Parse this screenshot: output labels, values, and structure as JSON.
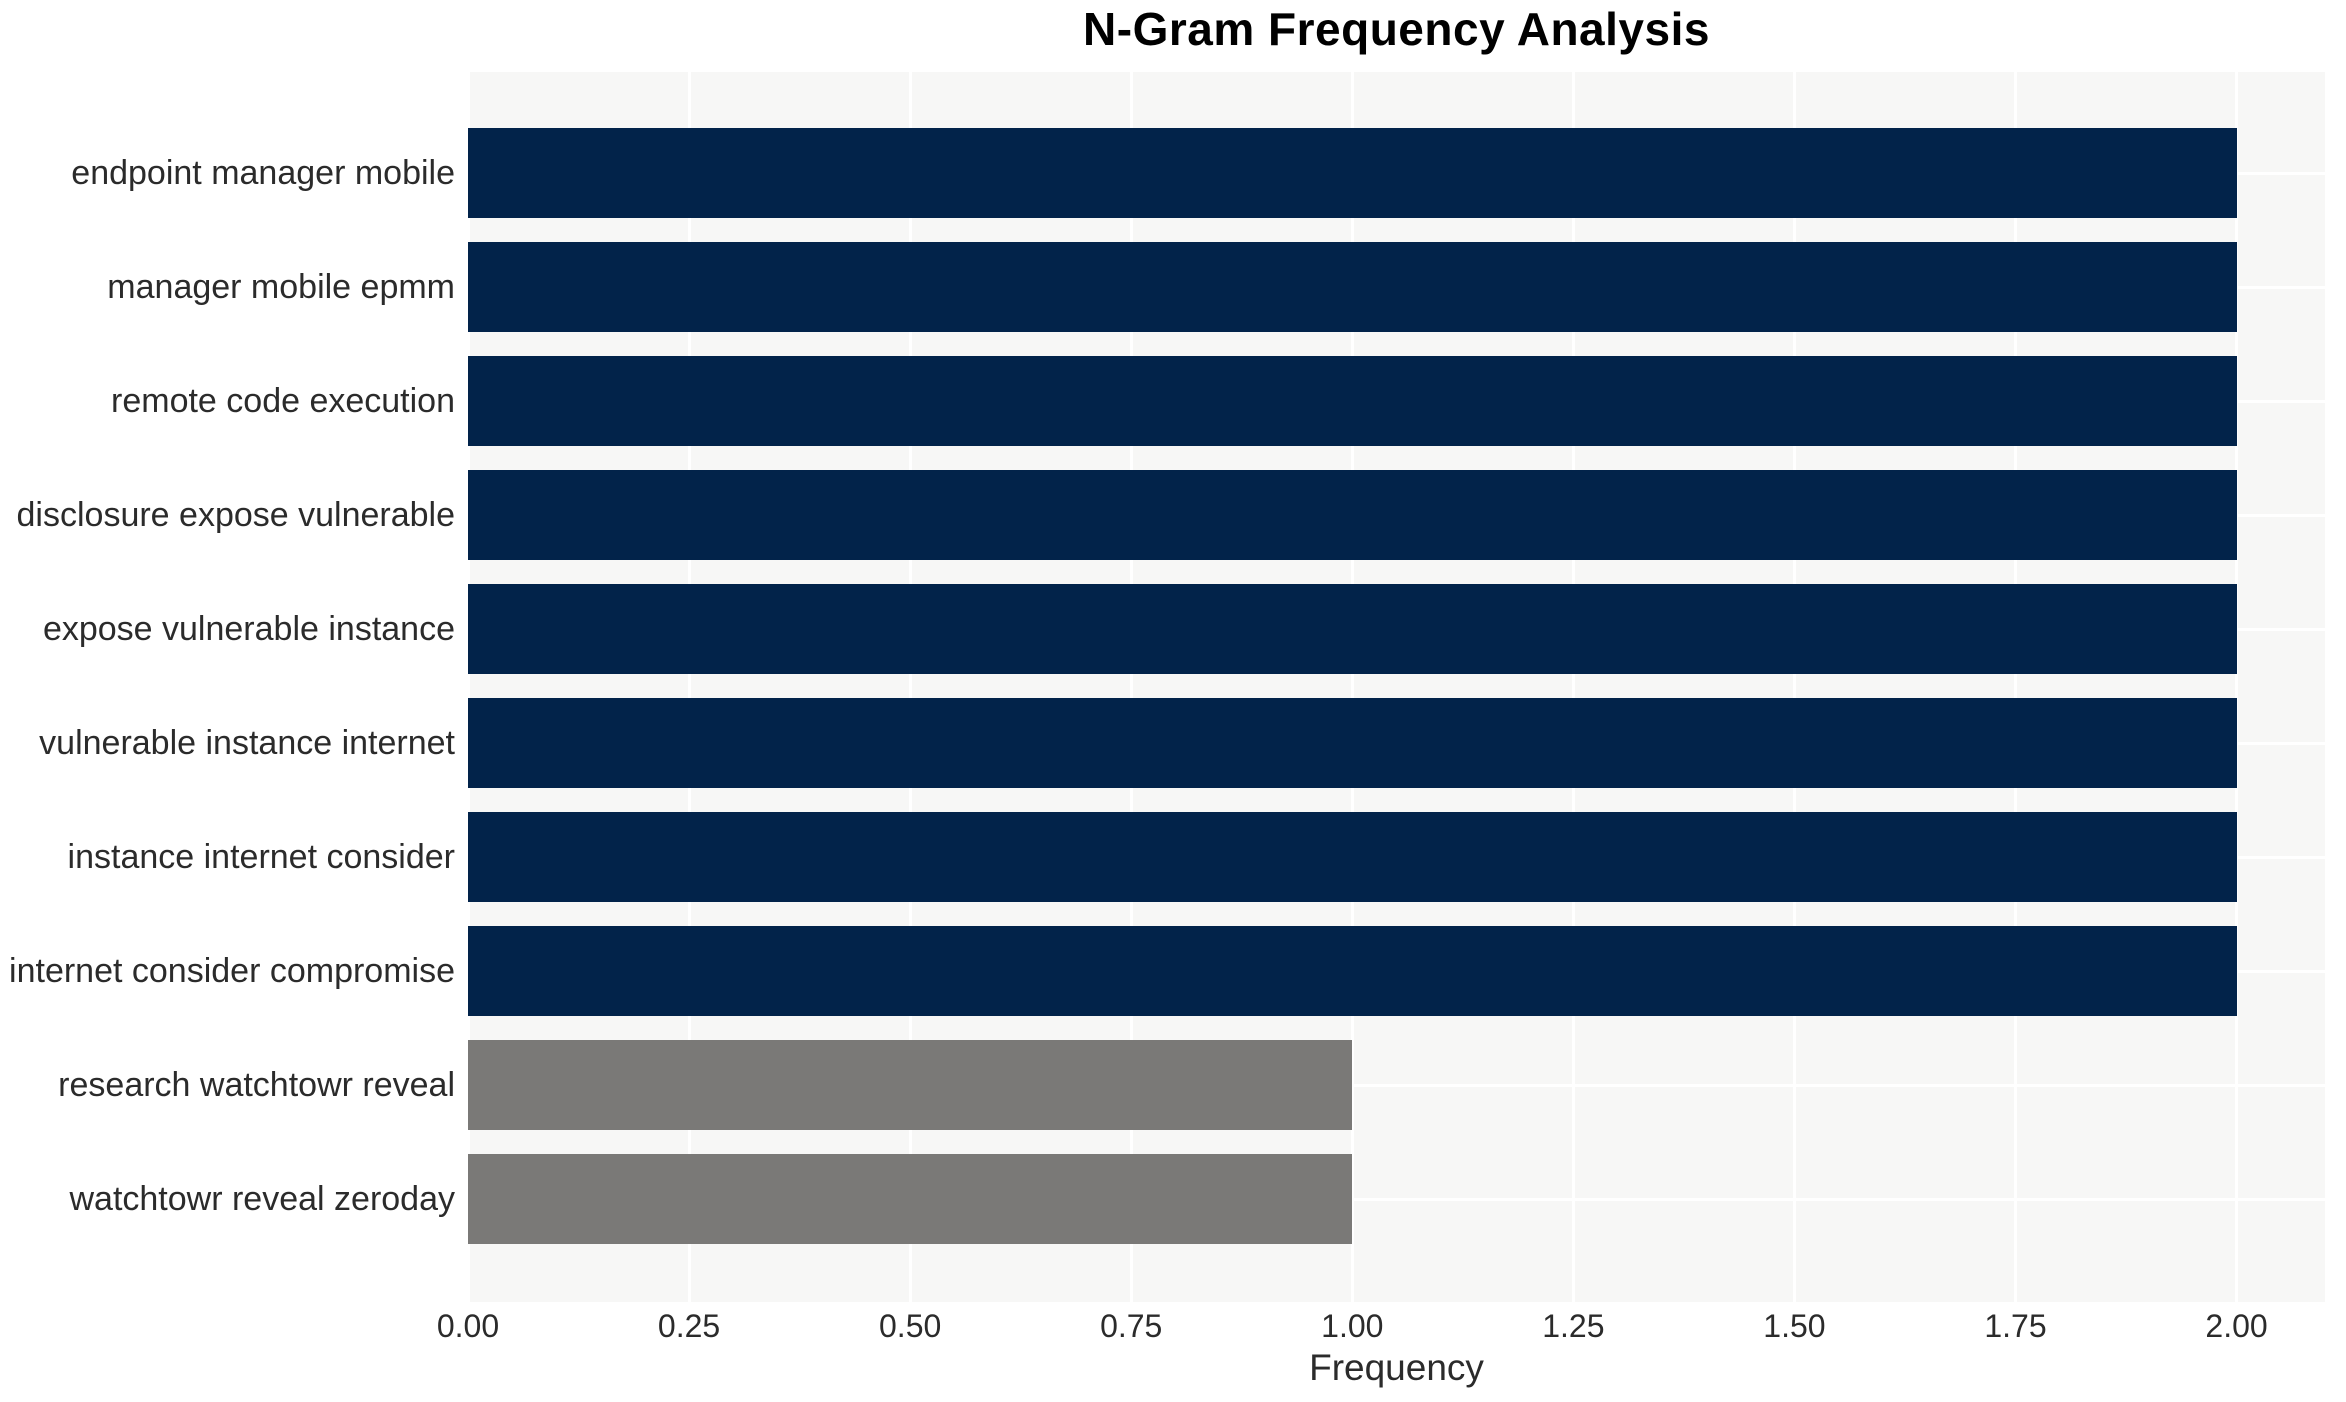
{
  "chart_data": {
    "type": "bar",
    "orientation": "horizontal",
    "title": "N-Gram Frequency Analysis",
    "xlabel": "Frequency",
    "ylabel": "",
    "categories": [
      "endpoint manager mobile",
      "manager mobile epmm",
      "remote code execution",
      "disclosure expose vulnerable",
      "expose vulnerable instance",
      "vulnerable instance internet",
      "instance internet consider",
      "internet consider compromise",
      "research watchtowr reveal",
      "watchtowr reveal zeroday"
    ],
    "values": [
      2,
      2,
      2,
      2,
      2,
      2,
      2,
      2,
      1,
      1
    ],
    "bar_colors": [
      "#02234a",
      "#02234a",
      "#02234a",
      "#02234a",
      "#02234a",
      "#02234a",
      "#02234a",
      "#02234a",
      "#7a7977",
      "#7a7977"
    ],
    "xlim": [
      0,
      2.1
    ],
    "xticks": [
      0,
      0.25,
      0.5,
      0.75,
      1.0,
      1.25,
      1.5,
      1.75,
      2.0
    ],
    "xtick_labels": [
      "0.00",
      "0.25",
      "0.50",
      "0.75",
      "1.00",
      "1.25",
      "1.50",
      "1.75",
      "2.00"
    ],
    "grid": true,
    "legend": false,
    "colors": {
      "plot_background": "#f7f7f6",
      "grid_line": "#ffffff",
      "tick_text": "#2b2b2b",
      "title_text": "#000000"
    }
  }
}
